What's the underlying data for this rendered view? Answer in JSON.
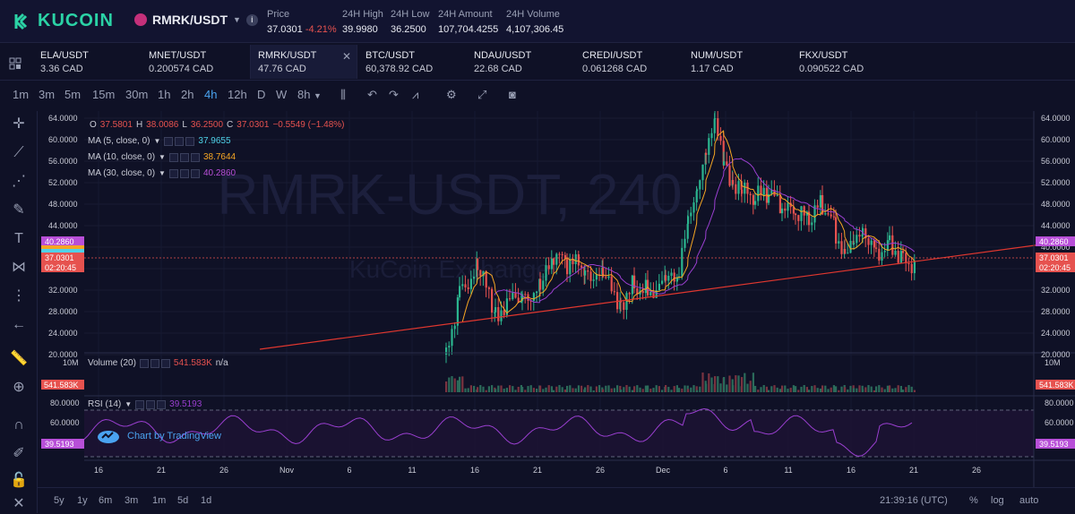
{
  "header": {
    "brand": "KUCOIN",
    "pair": "RMRK/USDT",
    "stats": [
      {
        "label": "Price",
        "value": "37.0301",
        "change": "-4.21%"
      },
      {
        "label": "24H High",
        "value": "39.9980"
      },
      {
        "label": "24H Low",
        "value": "36.2500"
      },
      {
        "label": "24H Amount",
        "value": "107,704.4255"
      },
      {
        "label": "24H Volume",
        "value": "4,107,306.45"
      }
    ]
  },
  "tickers": [
    {
      "symbol": "ELA/USDT",
      "price": "3.36 CAD"
    },
    {
      "symbol": "MNET/USDT",
      "price": "0.200574 CAD"
    },
    {
      "symbol": "RMRK/USDT",
      "price": "47.76 CAD",
      "active": true
    },
    {
      "symbol": "BTC/USDT",
      "price": "60,378.92 CAD"
    },
    {
      "symbol": "NDAU/USDT",
      "price": "22.68 CAD"
    },
    {
      "symbol": "CREDI/USDT",
      "price": "0.061268 CAD"
    },
    {
      "symbol": "NUM/USDT",
      "price": "1.17 CAD"
    },
    {
      "symbol": "FKX/USDT",
      "price": "0.090522 CAD"
    }
  ],
  "timeframes": [
    "1m",
    "3m",
    "5m",
    "15m",
    "30m",
    "1h",
    "2h",
    "4h",
    "12h",
    "D",
    "W",
    "8h"
  ],
  "selected_timeframe": "4h",
  "legend": {
    "ohlc": {
      "o_label": "O",
      "o": "37.5801",
      "h_label": "H",
      "h": "38.0086",
      "l_label": "L",
      "l": "36.2500",
      "c_label": "C",
      "c": "37.0301",
      "chg": "−0.5549 (−1.48%)"
    },
    "ma5": {
      "label": "MA (5, close, 0)",
      "value": "37.9655",
      "color": "#4fd1e8"
    },
    "ma10": {
      "label": "MA (10, close, 0)",
      "value": "38.7644",
      "color": "#f5a623"
    },
    "ma30": {
      "label": "MA (30, close, 0)",
      "value": "40.2860",
      "color": "#b84fd8"
    },
    "volume": {
      "label": "Volume (20)",
      "value": "541.583K",
      "extra": "n/a"
    },
    "rsi": {
      "label": "RSI (14)",
      "value": "39.5193"
    }
  },
  "watermark": "RMRK-USDT, 240",
  "watermark_sub": "KuCoin Exchange",
  "tv_badge": "Chart by TradingView",
  "price_axis": [
    "64.0000",
    "60.0000",
    "56.0000",
    "52.0000",
    "48.0000",
    "44.0000",
    "40.0000",
    "36.0000",
    "32.0000",
    "28.0000",
    "24.0000",
    "20.0000"
  ],
  "price_tags": {
    "ma30": "40.2860",
    "close": "37.0301",
    "timer": "02:20:45"
  },
  "volume_axis": {
    "top": "10M",
    "tag": "541.583K"
  },
  "rsi_axis": [
    "80.0000",
    "60.0000",
    "40.0000"
  ],
  "rsi_tag": "39.5193",
  "date_axis": [
    "16",
    "21",
    "26",
    "Nov",
    "6",
    "11",
    "16",
    "21",
    "26",
    "Dec",
    "6",
    "11",
    "16",
    "21",
    "26"
  ],
  "ranges": [
    "5y",
    "1y",
    "6m",
    "3m",
    "1m",
    "5d",
    "1d"
  ],
  "clock": "21:39:16 (UTC)",
  "right_opts": [
    "%",
    "log",
    "auto"
  ],
  "colors": {
    "up": "#2bb58f",
    "down": "#e6524f",
    "trend": "#e0372f",
    "rsi": "#9a3fd0",
    "bg": "#0f1126"
  }
}
